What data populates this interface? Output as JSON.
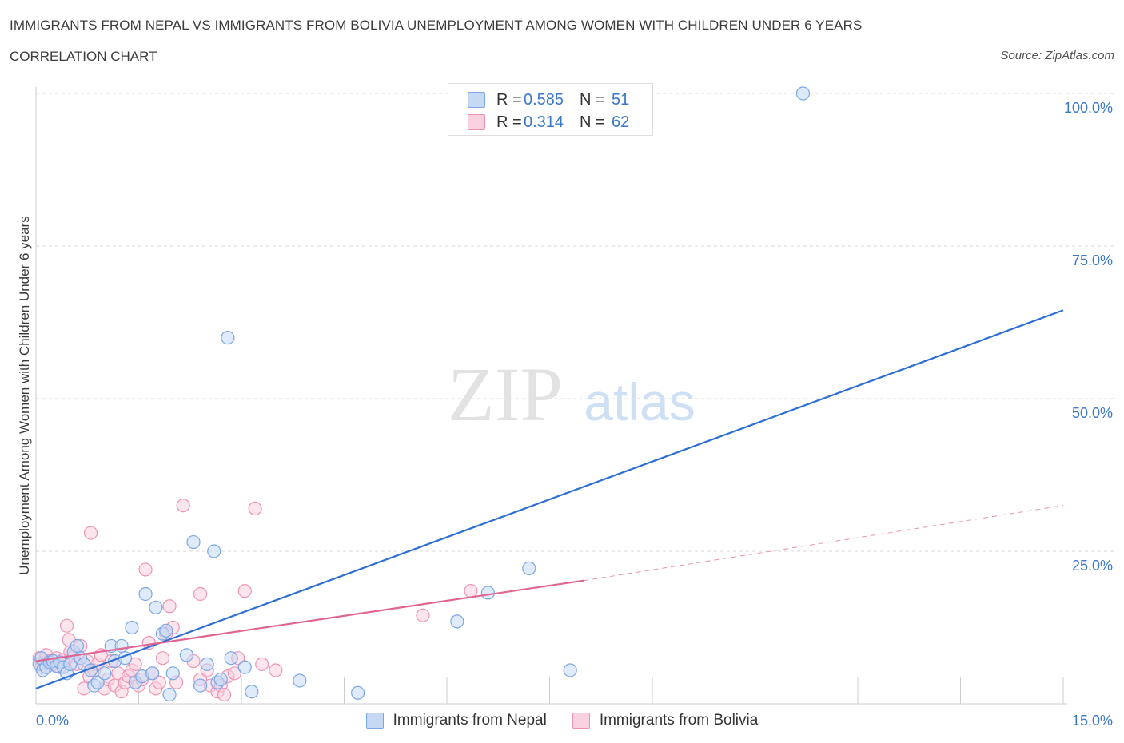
{
  "title": "IMMIGRANTS FROM NEPAL VS IMMIGRANTS FROM BOLIVIA UNEMPLOYMENT AMONG WOMEN WITH CHILDREN UNDER 6 YEARS",
  "subtitle": "CORRELATION CHART",
  "source": "Source: ZipAtlas.com",
  "watermark": {
    "zip": "ZIP",
    "atlas": "atlas"
  },
  "colors": {
    "nepal": "#7aa7e6",
    "nepal_fill": "#c5d9f5",
    "nepal_line": "#2d6fd2",
    "bolivia": "#ee94b3",
    "bolivia_fill": "#f9d0df",
    "bolivia_line": "#e06592",
    "axis_text": "#3b78c9",
    "grid": "#d8d8d8"
  },
  "legend_top": [
    {
      "r_label": "R =",
      "r_value": "0.585",
      "n_label": "N =",
      "n_value": "51"
    },
    {
      "r_label": "R =",
      "r_value": "0.314",
      "n_label": "N =",
      "n_value": "62"
    }
  ],
  "legend_bottom": [
    "Immigrants from Nepal",
    "Immigrants from Bolivia"
  ],
  "chart_data": {
    "type": "scatter",
    "title": "IMMIGRANTS FROM NEPAL VS IMMIGRANTS FROM BOLIVIA UNEMPLOYMENT AMONG WOMEN WITH CHILDREN UNDER 6 YEARS",
    "xlabel": "",
    "ylabel": "Unemployment Among Women with Children Under 6 years",
    "xlim": [
      0,
      15
    ],
    "ylim": [
      0,
      100
    ],
    "x_tick_labels": [
      "0.0%",
      "15.0%"
    ],
    "y_tick_values": [
      25,
      50,
      75,
      100
    ],
    "y_tick_labels": [
      "25.0%",
      "50.0%",
      "75.0%",
      "100.0%"
    ],
    "grid": true,
    "series": [
      {
        "name": "Immigrants from Nepal",
        "r": 0.585,
        "n": 51,
        "trend": {
          "x": [
            0,
            15
          ],
          "y": [
            2.5,
            64.5
          ]
        },
        "points": [
          [
            0.05,
            6.5
          ],
          [
            0.08,
            7.5
          ],
          [
            0.1,
            5.5
          ],
          [
            0.15,
            6.0
          ],
          [
            0.2,
            6.8
          ],
          [
            0.25,
            7.0
          ],
          [
            0.3,
            6.2
          ],
          [
            0.35,
            6.8
          ],
          [
            0.4,
            6.0
          ],
          [
            0.45,
            5.0
          ],
          [
            0.5,
            6.5
          ],
          [
            0.55,
            8.5
          ],
          [
            0.6,
            9.5
          ],
          [
            0.65,
            7.5
          ],
          [
            0.7,
            6.5
          ],
          [
            0.8,
            5.5
          ],
          [
            0.85,
            3.0
          ],
          [
            0.9,
            3.5
          ],
          [
            1.0,
            5.0
          ],
          [
            1.1,
            9.5
          ],
          [
            1.15,
            7.0
          ],
          [
            1.25,
            9.5
          ],
          [
            1.3,
            7.5
          ],
          [
            1.4,
            12.5
          ],
          [
            1.45,
            3.5
          ],
          [
            1.55,
            4.5
          ],
          [
            1.6,
            18.0
          ],
          [
            1.7,
            5.0
          ],
          [
            1.75,
            15.8
          ],
          [
            1.85,
            11.5
          ],
          [
            1.9,
            12.0
          ],
          [
            1.95,
            1.5
          ],
          [
            2.0,
            5.0
          ],
          [
            2.2,
            8.0
          ],
          [
            2.3,
            26.5
          ],
          [
            2.4,
            3.0
          ],
          [
            2.5,
            6.5
          ],
          [
            2.6,
            25.0
          ],
          [
            2.65,
            3.5
          ],
          [
            2.7,
            4.0
          ],
          [
            2.8,
            60.0
          ],
          [
            2.85,
            7.5
          ],
          [
            3.05,
            6.0
          ],
          [
            3.15,
            2.0
          ],
          [
            3.85,
            3.8
          ],
          [
            4.7,
            1.8
          ],
          [
            6.15,
            13.5
          ],
          [
            6.6,
            18.2
          ],
          [
            7.2,
            22.2
          ],
          [
            7.8,
            5.5
          ],
          [
            11.2,
            100.0
          ]
        ]
      },
      {
        "name": "Immigrants from Bolivia",
        "r": 0.314,
        "n": 62,
        "trend": {
          "x": [
            0,
            8.0
          ],
          "y": [
            7.0,
            20.2
          ]
        },
        "trend_dashed": {
          "x": [
            8.0,
            15
          ],
          "y": [
            20.2,
            32.5
          ]
        },
        "points": [
          [
            0.05,
            7.5
          ],
          [
            0.08,
            6.0
          ],
          [
            0.12,
            6.8
          ],
          [
            0.15,
            8.0
          ],
          [
            0.2,
            7.0
          ],
          [
            0.25,
            6.5
          ],
          [
            0.3,
            7.5
          ],
          [
            0.35,
            6.0
          ],
          [
            0.4,
            7.2
          ],
          [
            0.45,
            12.8
          ],
          [
            0.48,
            10.5
          ],
          [
            0.5,
            8.5
          ],
          [
            0.55,
            7.8
          ],
          [
            0.6,
            6.5
          ],
          [
            0.65,
            9.5
          ],
          [
            0.7,
            2.5
          ],
          [
            0.75,
            7.0
          ],
          [
            0.78,
            4.5
          ],
          [
            0.8,
            28.0
          ],
          [
            0.85,
            5.5
          ],
          [
            0.9,
            6.5
          ],
          [
            0.95,
            8.0
          ],
          [
            1.0,
            2.5
          ],
          [
            1.05,
            4.0
          ],
          [
            1.1,
            7.0
          ],
          [
            1.15,
            3.0
          ],
          [
            1.2,
            5.0
          ],
          [
            1.25,
            2.0
          ],
          [
            1.3,
            3.5
          ],
          [
            1.35,
            4.5
          ],
          [
            1.4,
            5.5
          ],
          [
            1.45,
            6.5
          ],
          [
            1.5,
            3.0
          ],
          [
            1.55,
            4.0
          ],
          [
            1.6,
            22.0
          ],
          [
            1.65,
            10.0
          ],
          [
            1.7,
            5.0
          ],
          [
            1.75,
            2.5
          ],
          [
            1.8,
            3.5
          ],
          [
            1.85,
            7.5
          ],
          [
            1.9,
            11.5
          ],
          [
            1.95,
            16.0
          ],
          [
            2.0,
            12.5
          ],
          [
            2.05,
            3.5
          ],
          [
            2.15,
            32.5
          ],
          [
            2.3,
            7.0
          ],
          [
            2.4,
            4.0
          ],
          [
            2.4,
            18.0
          ],
          [
            2.5,
            5.5
          ],
          [
            2.55,
            3.0
          ],
          [
            2.65,
            2.0
          ],
          [
            2.7,
            3.0
          ],
          [
            2.75,
            1.5
          ],
          [
            2.8,
            4.5
          ],
          [
            2.9,
            5.0
          ],
          [
            2.95,
            7.5
          ],
          [
            3.05,
            18.5
          ],
          [
            3.2,
            32.0
          ],
          [
            3.3,
            6.5
          ],
          [
            3.5,
            5.5
          ],
          [
            5.65,
            14.5
          ],
          [
            6.35,
            18.5
          ]
        ]
      }
    ]
  }
}
